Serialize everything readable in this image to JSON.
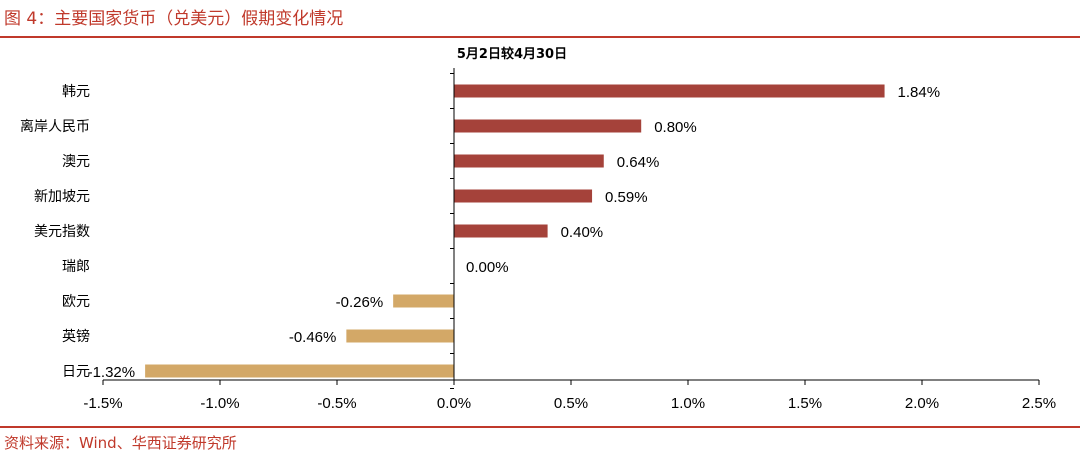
{
  "figure_title": "图 4：主要国家货币（兑美元）假期变化情况",
  "source_note": "资料来源：Wind、华西证券研究所",
  "colors": {
    "accent": "#c0392b",
    "positive": "#a5423a",
    "negative": "#d3a867"
  },
  "chart_data": {
    "type": "bar",
    "orientation": "horizontal",
    "title": "5月2日较4月30日",
    "categories": [
      "韩元",
      "离岸人民币",
      "澳元",
      "新加坡元",
      "美元指数",
      "瑞郎",
      "欧元",
      "英镑",
      "日元"
    ],
    "values": [
      1.84,
      0.8,
      0.64,
      0.59,
      0.4,
      0.0,
      -0.26,
      -0.46,
      -1.32
    ],
    "value_labels": [
      "1.84%",
      "0.80%",
      "0.64%",
      "0.59%",
      "0.40%",
      "0.00%",
      "-0.26%",
      "-0.46%",
      "-1.32%"
    ],
    "xlim": [
      -1.5,
      2.5
    ],
    "xticks": [
      -1.5,
      -1.0,
      -0.5,
      0.0,
      0.5,
      1.0,
      1.5,
      2.0,
      2.5
    ],
    "xtick_labels": [
      "-1.5%",
      "-1.0%",
      "-0.5%",
      "0.0%",
      "0.5%",
      "1.0%",
      "1.5%",
      "2.0%",
      "2.5%"
    ],
    "grid": false,
    "legend": "none"
  }
}
